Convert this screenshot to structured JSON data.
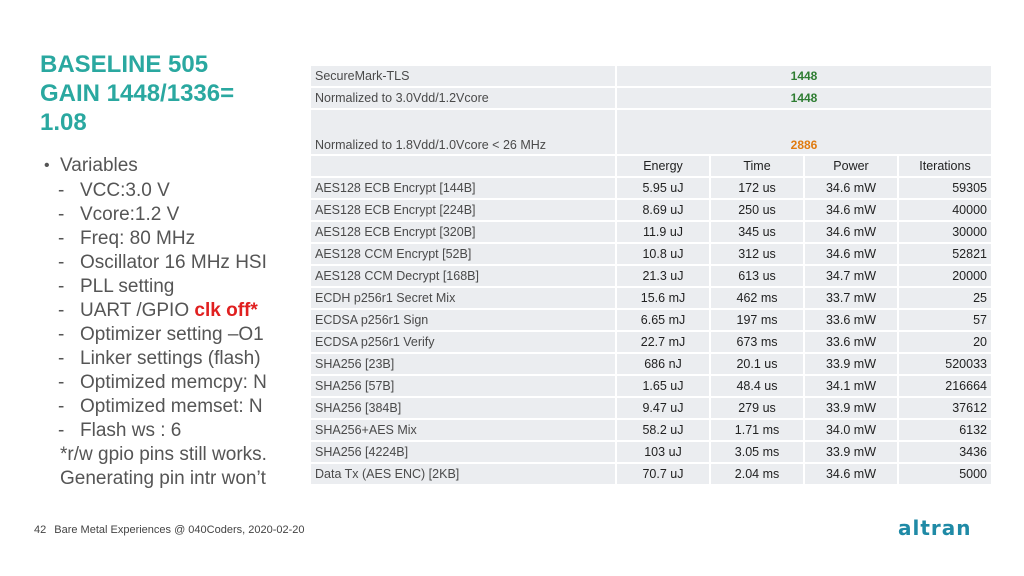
{
  "title": {
    "line1": "BASELINE 505",
    "line2": "GAIN 1448/1336=",
    "line3": "1.08"
  },
  "variables": {
    "bullet": "•",
    "heading": "Variables",
    "dash": "-",
    "items": [
      "VCC:3.0 V",
      "Vcore:1.2 V",
      "Freq: 80 MHz",
      "Oscillator 16 MHz HSI",
      "PLL setting",
      "UART /GPIO ",
      "Optimizer setting –O1",
      "Linker settings (flash)",
      "Optimized memcpy: N",
      "Optimized memset: N",
      "Flash ws : 6"
    ],
    "highlight": "clk off*",
    "note1": "*r/w gpio pins still works.",
    "note2": "Generating pin intr won’t"
  },
  "table": {
    "score_rows": [
      {
        "label": "SecureMark-TLS",
        "value": "1448",
        "color": "#2e7d32"
      },
      {
        "label": "Normalized to 3.0Vdd/1.2Vcore",
        "value": "1448",
        "color": "#2e7d32"
      },
      {
        "label": "Normalized to 1.8Vdd/1.0Vcore < 26 MHz",
        "value": "2886",
        "color": "#e07b10"
      }
    ],
    "headers": [
      "Energy",
      "Time",
      "Power",
      "Iterations"
    ],
    "rows": [
      {
        "label": "AES128 ECB Encrypt [144B]",
        "energy": "5.95 uJ",
        "time": "172 us",
        "power": "34.6 mW",
        "iterations": "59305"
      },
      {
        "label": "AES128 ECB Encrypt [224B]",
        "energy": "8.69 uJ",
        "time": "250 us",
        "power": "34.6 mW",
        "iterations": "40000"
      },
      {
        "label": "AES128 ECB Encrypt [320B]",
        "energy": "11.9 uJ",
        "time": "345 us",
        "power": "34.6 mW",
        "iterations": "30000"
      },
      {
        "label": "AES128 CCM Encrypt [52B]",
        "energy": "10.8 uJ",
        "time": "312 us",
        "power": "34.6 mW",
        "iterations": "52821"
      },
      {
        "label": "AES128 CCM Decrypt [168B]",
        "energy": "21.3 uJ",
        "time": "613 us",
        "power": "34.7 mW",
        "iterations": "20000"
      },
      {
        "label": "ECDH p256r1 Secret Mix",
        "energy": "15.6 mJ",
        "time": "462 ms",
        "power": "33.7 mW",
        "iterations": "25"
      },
      {
        "label": "ECDSA p256r1 Sign",
        "energy": "6.65 mJ",
        "time": "197 ms",
        "power": "33.6 mW",
        "iterations": "57"
      },
      {
        "label": "ECDSA p256r1 Verify",
        "energy": "22.7 mJ",
        "time": "673 ms",
        "power": "33.6 mW",
        "iterations": "20"
      },
      {
        "label": "SHA256 [23B]",
        "energy": "686 nJ",
        "time": "20.1 us",
        "power": "33.9 mW",
        "iterations": "520033"
      },
      {
        "label": "SHA256 [57B]",
        "energy": "1.65 uJ",
        "time": "48.4 us",
        "power": "34.1 mW",
        "iterations": "216664"
      },
      {
        "label": "SHA256 [384B]",
        "energy": "9.47 uJ",
        "time": "279 us",
        "power": "33.9 mW",
        "iterations": "37612"
      },
      {
        "label": "SHA256+AES Mix",
        "energy": "58.2 uJ",
        "time": "1.71 ms",
        "power": "34.0 mW",
        "iterations": "6132"
      },
      {
        "label": "SHA256 [4224B]",
        "energy": "103 uJ",
        "time": "3.05 ms",
        "power": "33.9 mW",
        "iterations": "3436"
      },
      {
        "label": "Data Tx (AES ENC) [2KB]",
        "energy": "70.7 uJ",
        "time": "2.04 ms",
        "power": "34.6 mW",
        "iterations": "5000"
      }
    ]
  },
  "footer": {
    "page": "42",
    "text": "Bare Metal Experiences @ 040Coders, 2020-02-20"
  },
  "logo": {
    "text": "ALTRAN"
  }
}
